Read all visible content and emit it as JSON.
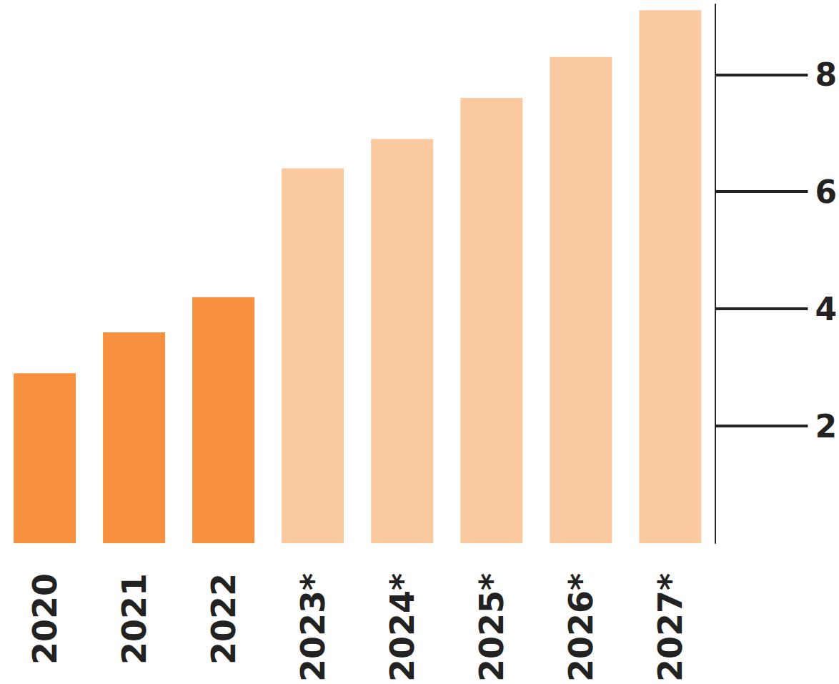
{
  "chart_data": {
    "type": "bar",
    "categories": [
      "2020",
      "2021",
      "2022",
      "2023*",
      "2024*",
      "2025*",
      "2026*",
      "2027*"
    ],
    "values": [
      2.9,
      3.6,
      4.2,
      6.4,
      6.9,
      7.6,
      8.3,
      9.1
    ],
    "colors": [
      "#f7913f",
      "#f7913f",
      "#f7913f",
      "#fbc9a0",
      "#fbc9a0",
      "#fbc9a0",
      "#fbc9a0",
      "#fbc9a0"
    ],
    "ylim": [
      0,
      9.2
    ],
    "yticks": [
      2,
      4,
      6,
      8
    ],
    "grid": false
  }
}
